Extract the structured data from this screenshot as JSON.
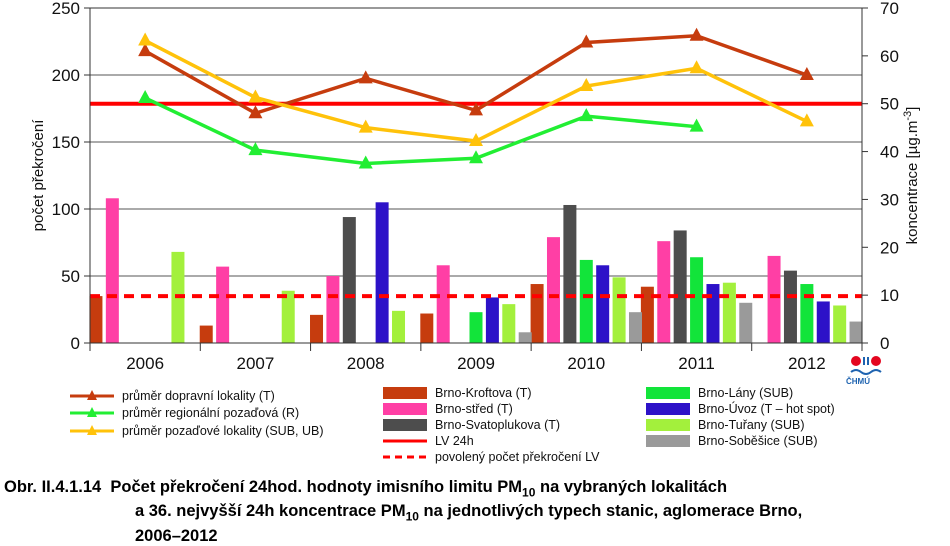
{
  "chart_data": {
    "type": "bar+line",
    "categories": [
      "2006",
      "2007",
      "2008",
      "2009",
      "2010",
      "2011",
      "2012"
    ],
    "y_left": {
      "label": "počet překročení",
      "ylim": [
        0,
        250
      ],
      "ticks": [
        "0",
        "50",
        "100",
        "150",
        "200",
        "250"
      ]
    },
    "y_right": {
      "label": "koncentrace [µg.m-3]",
      "label_main": "koncentrace [µg.m",
      "label_sup": "-3",
      "label_end": "]",
      "ylim": [
        0,
        70
      ],
      "ticks": [
        "0",
        "10",
        "20",
        "30",
        "40",
        "50",
        "60",
        "70"
      ]
    },
    "bar_series": [
      {
        "name": "Brno-Kroftova (T)",
        "color": "#c63c0e",
        "values": [
          35,
          13,
          21,
          22,
          44,
          42,
          null
        ]
      },
      {
        "name": "Brno-střed (T)",
        "color": "#ff3fa5",
        "values": [
          108,
          57,
          50,
          58,
          79,
          76,
          65
        ]
      },
      {
        "name": "Brno-Svatoplukova (T)",
        "color": "#4d4d4d",
        "values": [
          null,
          null,
          94,
          null,
          103,
          84,
          54
        ]
      },
      {
        "name": "Brno-Lány (SUB)",
        "color": "#12e43a",
        "values": [
          null,
          null,
          null,
          23,
          62,
          64,
          44
        ]
      },
      {
        "name": "Brno-Úvoz (T – hot spot)",
        "color": "#2d12c8",
        "values": [
          null,
          null,
          105,
          34,
          58,
          44,
          31
        ]
      },
      {
        "name": "Brno-Tuřany (SUB)",
        "color": "#a3f03c",
        "values": [
          68,
          39,
          24,
          29,
          49,
          45,
          28
        ]
      },
      {
        "name": "Brno-Soběšice (SUB)",
        "color": "#9a9a9a",
        "values": [
          null,
          null,
          null,
          8,
          23,
          30,
          16
        ]
      }
    ],
    "line_series": [
      {
        "name": "průměr dopravní lokality (T)",
        "color": "#c63c0e",
        "values": [
          61,
          48,
          55.3,
          48.6,
          62.8,
          64.2,
          56
        ]
      },
      {
        "name": "průměr regionální pozaďová (R)",
        "color": "#22ee33",
        "values": [
          51.2,
          40.3,
          37.5,
          38.6,
          47.4,
          45.2,
          null
        ]
      },
      {
        "name": "průměr pozaďové lokality (SUB, UB)",
        "color": "#ffc20a",
        "values": [
          63.2,
          51.3,
          45,
          42.2,
          53.7,
          57.4,
          46.3
        ]
      }
    ],
    "reference_lines": [
      {
        "name": "LV 24h",
        "color": "#ff0000",
        "axis": "right",
        "value": 50
      },
      {
        "name": "povolený počet překročení LV",
        "color": "#ff0000",
        "axis": "left",
        "value": 35,
        "dashed": true
      }
    ]
  },
  "logo": {
    "text": "ČHMÚ",
    "colors": [
      "#e4061f",
      "#1e63b0"
    ]
  },
  "caption": {
    "prefix": "Obr. II.4.1.14",
    "line1": "Počet překročení 24hod. hodnoty imisního limitu PM",
    "sub1": "10",
    "line1_end": " na vybraných lokalitách",
    "line2": "a 36. nejvyšší 24h koncentrace PM",
    "sub2": "10",
    "line2_end": " na jednotlivých typech stanic, aglomerace Brno,",
    "line3": "2006–2012"
  }
}
